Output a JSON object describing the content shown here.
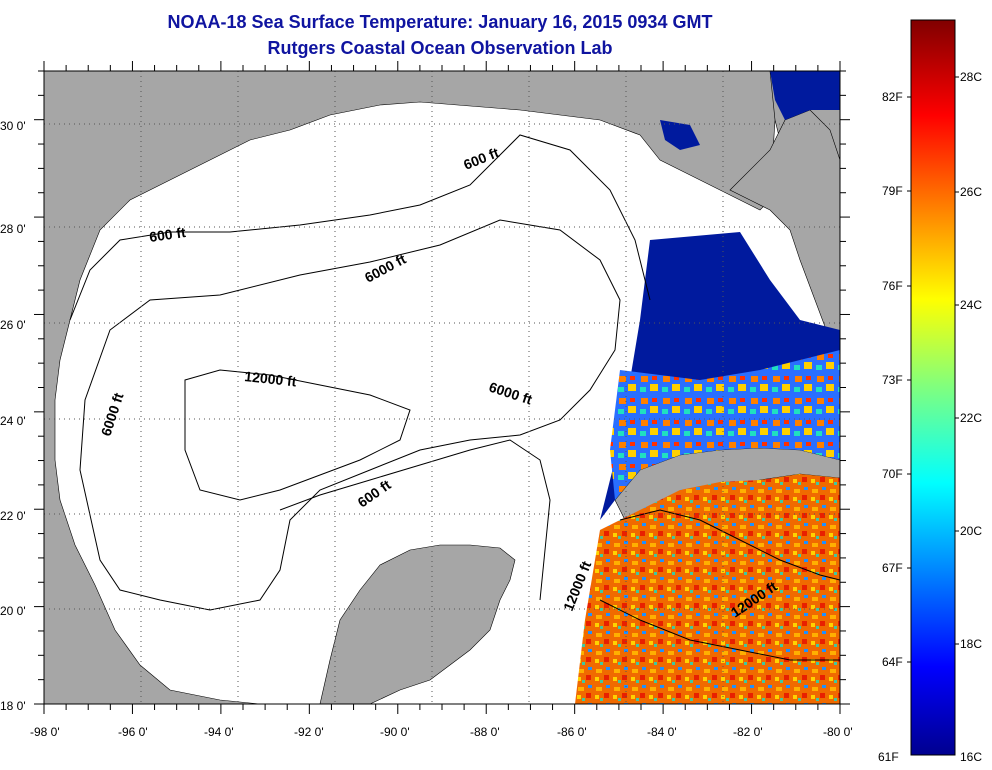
{
  "title": {
    "line1": "NOAA-18 Sea Surface Temperature:  January 16, 2015 0934 GMT",
    "line2": "Rutgers Coastal Ocean Observation Lab"
  },
  "map": {
    "lon_range": [
      -98,
      -80
    ],
    "lat_range": [
      18,
      31
    ],
    "lon_ticks": [
      "-98 0'",
      "-96 0'",
      "-94 0'",
      "-92 0'",
      "-90 0'",
      "-88 0'",
      "-86 0'",
      "-84 0'",
      "-82 0'",
      "-80 0'"
    ],
    "lat_ticks": [
      "18 0'",
      "20 0'",
      "22 0'",
      "24 0'",
      "26 0'",
      "28 0'",
      "30 0'"
    ],
    "contour_labels": [
      "600 ft",
      "600 ft",
      "6000 ft",
      "12000 ft",
      "6000 ft",
      "6000 ft",
      "600 ft",
      "12000 ft",
      "12000 ft"
    ],
    "land_color": "#a6a6a6",
    "grid": "dotted"
  },
  "colorbar": {
    "fahrenheit": [
      "82F",
      "79F",
      "76F",
      "73F",
      "70F",
      "67F",
      "64F",
      "61F"
    ],
    "celsius": [
      "28C",
      "26C",
      "24C",
      "22C",
      "20C",
      "18C",
      "16C"
    ],
    "min_c": 16,
    "max_c": 29,
    "colormap": "jet"
  }
}
